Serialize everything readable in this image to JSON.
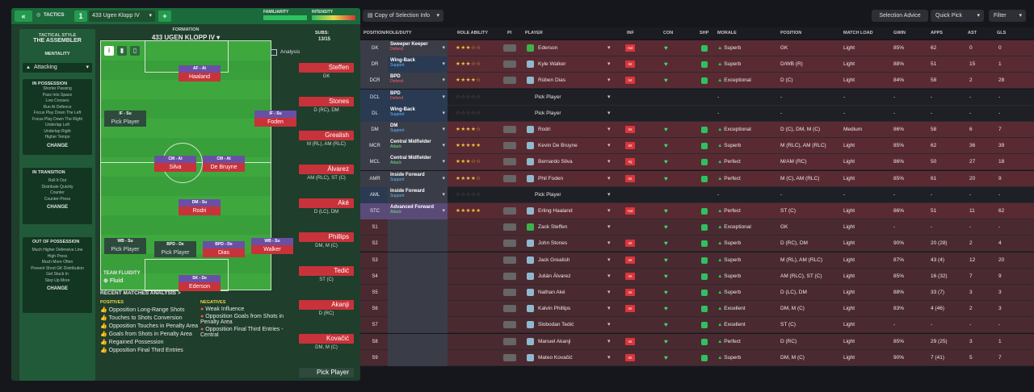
{
  "topbar": {
    "back": "«",
    "title": "TACTICS",
    "slot": "1",
    "tactic_name": "433 Ugen Klopp IV",
    "add": "+",
    "familiarity_label": "FAMILIARITY",
    "intensity_label": "INTENSITY"
  },
  "style": {
    "label": "TACTICAL STYLE",
    "name": "THE ASSEMBLER",
    "mentality_label": "MENTALITY",
    "mentality": "Attacking",
    "sections": [
      {
        "title": "IN POSSESSION",
        "lines": [
          "Shorter Passing",
          "Pass Into Space",
          "Low Crosses",
          "Run At Defence",
          "Focus Play Down The Left",
          "Focus Play Down The Right",
          "Underlap Left",
          "Underlap Right",
          "Higher Tempo"
        ],
        "change": "CHANGE"
      },
      {
        "title": "IN TRANSITION",
        "lines": [
          "Roll It Out",
          "Distribute Quickly",
          "Counter",
          "Counter-Press"
        ],
        "change": "CHANGE"
      },
      {
        "title": "OUT OF POSSESSION",
        "lines": [
          "Much Higher Defensive Line",
          "High Press",
          "Much More Often",
          "Prevent Short GK Distribution",
          "Get Stuck In",
          "Step Up More"
        ],
        "change": "CHANGE"
      }
    ]
  },
  "formation": {
    "label": "FORMATION",
    "name": "433 UGEN KLOPP IV",
    "analysis": "Analysis",
    "subs_label": "SUBS:",
    "subs": "13/15"
  },
  "pitch_players": [
    {
      "role": "AF - At",
      "name": "Haaland"
    },
    {
      "role": "IF - Su",
      "name": "Pick Player"
    },
    {
      "role": "IF - Su",
      "name": "Foden"
    },
    {
      "role": "CM - At",
      "name": "Silva"
    },
    {
      "role": "CM - At",
      "name": "De Bruyne"
    },
    {
      "role": "DM - Su",
      "name": "Rodri"
    },
    {
      "role": "WB - Su",
      "name": "Pick Player"
    },
    {
      "role": "BPD - De",
      "name": "Pick Player"
    },
    {
      "role": "BPD - De",
      "name": "Dias"
    },
    {
      "role": "WB - Su",
      "name": "Walker"
    },
    {
      "role": "SK - De",
      "name": "Ederson"
    }
  ],
  "fluidity": {
    "label": "TEAM FLUIDITY",
    "value": "Fluid"
  },
  "analysis": {
    "title": "RECENT MATCHES ANALYSIS >",
    "pos_label": "POSITIVES",
    "positives": [
      "Opposition Long-Range Shots",
      "Touches to Shots Conversion",
      "Opposition Touches in Penalty Area",
      "Goals from Shots in Penalty Area",
      "Regained Possession",
      "Opposition Final Third Entries"
    ],
    "neg_label": "NEGATIVES",
    "negatives": [
      "Weak Influence",
      "Opposition Goals from Shots in Penalty Area",
      "Opposition Final Third Entries - Central"
    ]
  },
  "subs": [
    {
      "name": "Steffen",
      "pos": "GK"
    },
    {
      "name": "Stones",
      "pos": "D (RC), DM"
    },
    {
      "name": "Grealish",
      "pos": "M (RL), AM (RLC)"
    },
    {
      "name": "Álvarez",
      "pos": "AM (RLC), ST (C)"
    },
    {
      "name": "Aké",
      "pos": "D (LC), DM"
    },
    {
      "name": "Phillips",
      "pos": "DM, M (C)"
    },
    {
      "name": "Tedić",
      "pos": "ST (C)"
    },
    {
      "name": "Akanji",
      "pos": "D (RC)"
    },
    {
      "name": "Kovačić",
      "pos": "DM, M (C)"
    },
    {
      "name": "Pick Player",
      "pos": ""
    }
  ],
  "right_top": {
    "copy": "Copy of Selection Info",
    "advice": "Selection Advice",
    "quick_pick": "Quick Pick",
    "filter": "Filter"
  },
  "headers": [
    "POSITION/ROLE/DUTY",
    "ROLE ABILITY",
    "PI",
    "PLAYER",
    "INF",
    "CON",
    "SHP",
    "MORALE",
    "POSITION",
    "MATCH LOAD",
    "GWIN",
    "APPS",
    "AST",
    "GLS"
  ],
  "rows": [
    {
      "pos": "GK",
      "role": "Sweeper Keeper",
      "duty": "Defend",
      "stars": "★★★☆☆",
      "player": "Ederson",
      "inf": "Hol",
      "morale": "Superb",
      "position": "GK",
      "load": "Light",
      "gwin": "85%",
      "apps": "62",
      "ast": "0",
      "gls": "0"
    },
    {
      "pos": "DR",
      "role": "Wing-Back",
      "duty": "Support",
      "stars": "★★★☆☆",
      "player": "Kyle Walker",
      "inf": "Int",
      "morale": "Superb",
      "position": "D/WB (R)",
      "load": "Light",
      "gwin": "88%",
      "apps": "51",
      "ast": "15",
      "gls": "1"
    },
    {
      "pos": "DCR",
      "role": "BPD",
      "duty": "Defend",
      "stars": "★★★★☆",
      "player": "Rúben Dias",
      "inf": "Int",
      "morale": "Exceptional",
      "position": "D (C)",
      "load": "Light",
      "gwin": "84%",
      "apps": "58",
      "ast": "2",
      "gls": "28"
    },
    {
      "pos": "DCL",
      "role": "BPD",
      "duty": "Defend",
      "stars": "☆☆☆☆☆",
      "player": "Pick Player",
      "inf": "",
      "morale": "-",
      "position": "-",
      "load": "-",
      "gwin": "-",
      "apps": "-",
      "ast": "-",
      "gls": "-"
    },
    {
      "pos": "DL",
      "role": "Wing-Back",
      "duty": "Support",
      "stars": "☆☆☆☆☆",
      "player": "Pick Player",
      "inf": "",
      "morale": "-",
      "position": "-",
      "load": "-",
      "gwin": "-",
      "apps": "-",
      "ast": "-",
      "gls": "-"
    },
    {
      "pos": "DM",
      "role": "DM",
      "duty": "Support",
      "stars": "★★★★☆",
      "player": "Rodri",
      "inf": "Int",
      "morale": "Exceptional",
      "position": "D (C), DM, M (C)",
      "load": "Medium",
      "gwin": "86%",
      "apps": "58",
      "ast": "6",
      "gls": "7"
    },
    {
      "pos": "MCR",
      "role": "Central Midfielder",
      "duty": "Attack",
      "stars": "★★★★★",
      "player": "Kevin De Bruyne",
      "inf": "Int",
      "morale": "Superb",
      "position": "M (RLC), AM (RLC)",
      "load": "Light",
      "gwin": "85%",
      "apps": "62",
      "ast": "36",
      "gls": "39"
    },
    {
      "pos": "MCL",
      "role": "Central Midfielder",
      "duty": "Attack",
      "stars": "★★★☆☆",
      "player": "Bernardo Silva",
      "inf": "Inj",
      "morale": "Perfect",
      "position": "M/AM (RC)",
      "load": "Light",
      "gwin": "86%",
      "apps": "50",
      "ast": "27",
      "gls": "18"
    },
    {
      "pos": "AMR",
      "role": "Inside Forward",
      "duty": "Support",
      "stars": "★★★★☆",
      "player": "Phil Foden",
      "inf": "Int",
      "morale": "Perfect",
      "position": "M (C), AM (RLC)",
      "load": "Light",
      "gwin": "85%",
      "apps": "61",
      "ast": "20",
      "gls": "9"
    },
    {
      "pos": "AML",
      "role": "Inside Forward",
      "duty": "Support",
      "stars": "☆☆☆☆☆",
      "player": "Pick Player",
      "inf": "",
      "morale": "-",
      "position": "-",
      "load": "-",
      "gwin": "-",
      "apps": "-",
      "ast": "-",
      "gls": "-"
    },
    {
      "pos": "STC",
      "role": "Advanced Forward",
      "duty": "Attack",
      "stars": "★★★★★",
      "player": "Erling Haaland",
      "inf": "Hol",
      "morale": "Perfect",
      "position": "ST (C)",
      "load": "Light",
      "gwin": "86%",
      "apps": "51",
      "ast": "11",
      "gls": "62"
    },
    {
      "pos": "S1",
      "role": "",
      "duty": "",
      "stars": "",
      "player": "Zack Steffen",
      "inf": "",
      "morale": "Exceptional",
      "position": "GK",
      "load": "Light",
      "gwin": "-",
      "apps": "-",
      "ast": "-",
      "gls": "-"
    },
    {
      "pos": "S2",
      "role": "",
      "duty": "",
      "stars": "",
      "player": "John Stones",
      "inf": "Int",
      "morale": "Superb",
      "position": "D (RC), DM",
      "load": "Light",
      "gwin": "90%",
      "apps": "20 (28)",
      "ast": "2",
      "gls": "4"
    },
    {
      "pos": "S3",
      "role": "",
      "duty": "",
      "stars": "",
      "player": "Jack Grealish",
      "inf": "Int",
      "morale": "Superb",
      "position": "M (RL), AM (RLC)",
      "load": "Light",
      "gwin": "87%",
      "apps": "43 (4)",
      "ast": "12",
      "gls": "20"
    },
    {
      "pos": "S4",
      "role": "",
      "duty": "",
      "stars": "",
      "player": "Julián Álvarez",
      "inf": "Int",
      "morale": "Superb",
      "position": "AM (RLC), ST (C)",
      "load": "Light",
      "gwin": "85%",
      "apps": "16 (32)",
      "ast": "7",
      "gls": "9"
    },
    {
      "pos": "S5",
      "role": "",
      "duty": "",
      "stars": "",
      "player": "Nathan Aké",
      "inf": "Int",
      "morale": "Superb",
      "position": "D (LC), DM",
      "load": "Light",
      "gwin": "88%",
      "apps": "33 (7)",
      "ast": "3",
      "gls": "3"
    },
    {
      "pos": "S6",
      "role": "",
      "duty": "",
      "stars": "",
      "player": "Kalvin Phillips",
      "inf": "Int",
      "morale": "Excellent",
      "position": "DM, M (C)",
      "load": "Light",
      "gwin": "83%",
      "apps": "4 (46)",
      "ast": "2",
      "gls": "3"
    },
    {
      "pos": "S7",
      "role": "",
      "duty": "",
      "stars": "",
      "player": "Slobodan Tedić",
      "inf": "",
      "morale": "Excellent",
      "position": "ST (C)",
      "load": "Light",
      "gwin": "-",
      "apps": "-",
      "ast": "-",
      "gls": "-"
    },
    {
      "pos": "S8",
      "role": "",
      "duty": "",
      "stars": "",
      "player": "Manuel Akanji",
      "inf": "Int",
      "morale": "Perfect",
      "position": "D (RC)",
      "load": "Light",
      "gwin": "85%",
      "apps": "29 (25)",
      "ast": "3",
      "gls": "1"
    },
    {
      "pos": "S9",
      "role": "",
      "duty": "",
      "stars": "",
      "player": "Mateo Kovačić",
      "inf": "Int",
      "morale": "Superb",
      "position": "DM, M (C)",
      "load": "Light",
      "gwin": "90%",
      "apps": "7 (41)",
      "ast": "5",
      "gls": "7"
    }
  ]
}
